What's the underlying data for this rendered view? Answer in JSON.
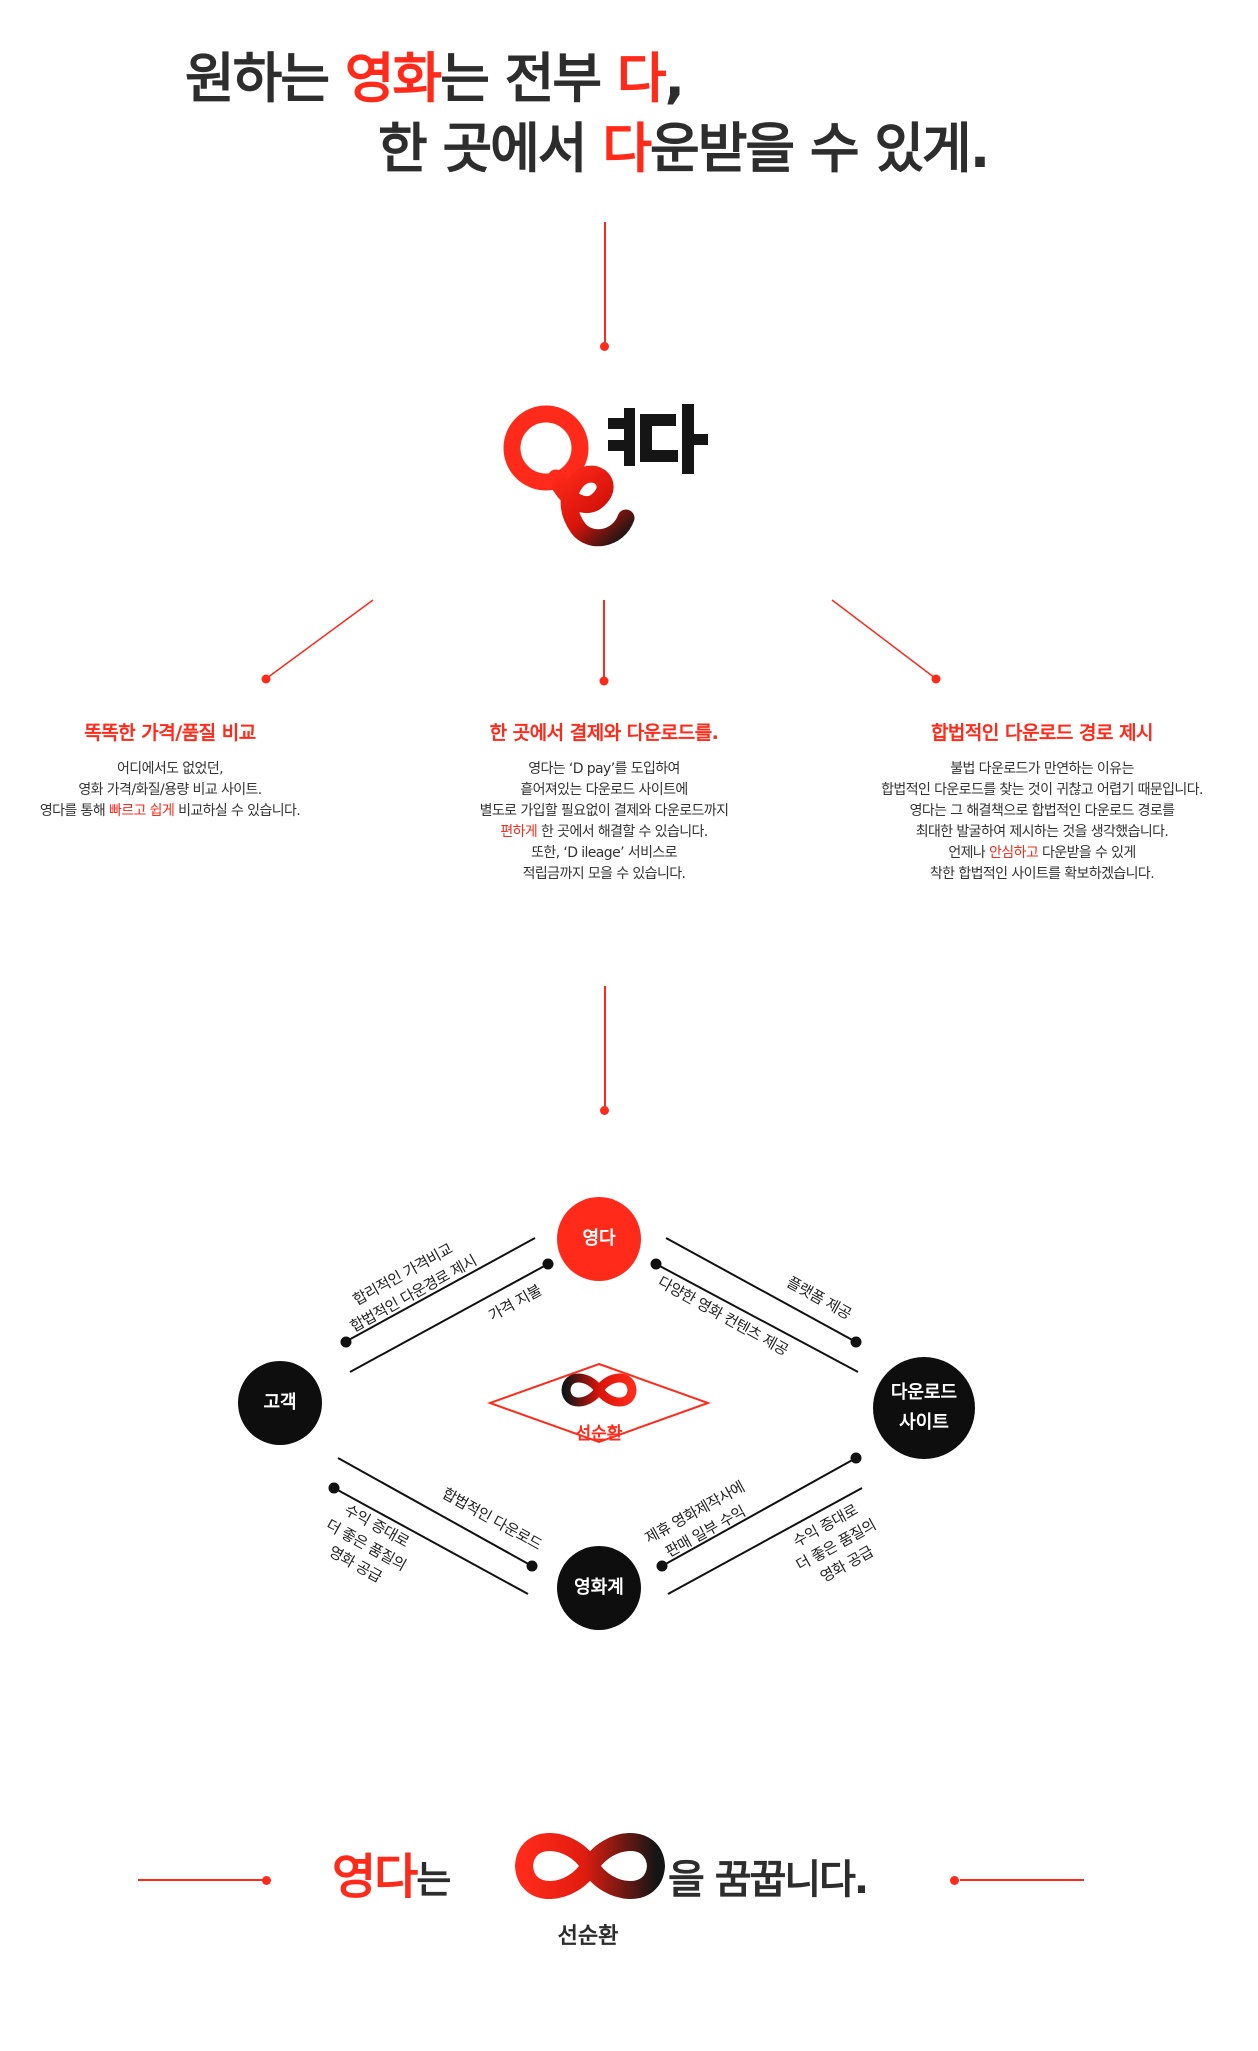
{
  "headline": {
    "line1_a": "원하는 ",
    "line1_red": "영화",
    "line1_b": "는 전부 ",
    "line1_red2": "다",
    "line1_c": ",",
    "line2_a": "한 곳에서 ",
    "line2_red": "다",
    "line2_b": "운받을 수 있게."
  },
  "logo": {
    "text": "영다"
  },
  "features": [
    {
      "title": "똑똑한 가격/품질 비교",
      "lines": [
        "어디에서도 없었던,",
        "영화 가격/화질/용량 비교 사이트.",
        "영다를 통해 ",
        "빠르고 쉽게",
        " 비교하실 수 있습니다."
      ]
    },
    {
      "title": "한 곳에서 결제와 다운로드를.",
      "lines": [
        "영다는 ‘D pay’를 도입하여",
        "흩어져있는 다운로드 사이트에",
        "별도로 가입할 필요없이 결제와 다운로드까지",
        "편하게",
        " 한 곳에서 해결할 수 있습니다.",
        "또한, ‘D ileage’ 서비스로",
        "적립금까지 모을 수 있습니다."
      ]
    },
    {
      "title": "합법적인 다운로드 경로 제시",
      "lines": [
        "불법 다운로드가 만연하는 이유는",
        "합법적인 다운로드를 찾는 것이 귀찮고 어렵기 때문입니다.",
        "영다는 그 해결책으로 합법적인 다운로드 경로를",
        "최대한 발굴하여 제시하는 것을 생각했습니다.",
        "언제나 ",
        "안심하고",
        " 다운받을 수 있게",
        "착한 합법적인 사이트를 확보하겠습니다."
      ]
    }
  ],
  "cycle": {
    "top": "영다",
    "left": "고객",
    "right_line1": "다운로드",
    "right_line2": "사이트",
    "bottom": "영화계",
    "center": "선순환",
    "labels": {
      "tl_outer_1": "합리적인 가격비교",
      "tl_outer_2": "합법적인 다운경로 제시",
      "tl_inner": "가격 지불",
      "tr_outer": "플랫폼 제공",
      "tr_inner": "다양한 영화 컨텐츠 제공",
      "bl_inner": "합법적인 다운로드",
      "bl_outer_1": "수익 증대로",
      "bl_outer_2": "더 좋은 품질의",
      "bl_outer_3": "영화 공급",
      "br_inner_1": "제휴 영화제작사에",
      "br_inner_2": "판매 일부 수익",
      "br_outer_1": "수익 증대로",
      "br_outer_2": "더 좋은 품질의",
      "br_outer_3": "영화 공급"
    }
  },
  "bottom": {
    "red": "영다",
    "after_red": "는",
    "after_infinity": "을  꿈꿉니다.",
    "infinity_caption": "선순환"
  },
  "colors": {
    "accent": "#ff2a1a",
    "dark": "#0e0e0e",
    "text": "#2d2d2d"
  }
}
